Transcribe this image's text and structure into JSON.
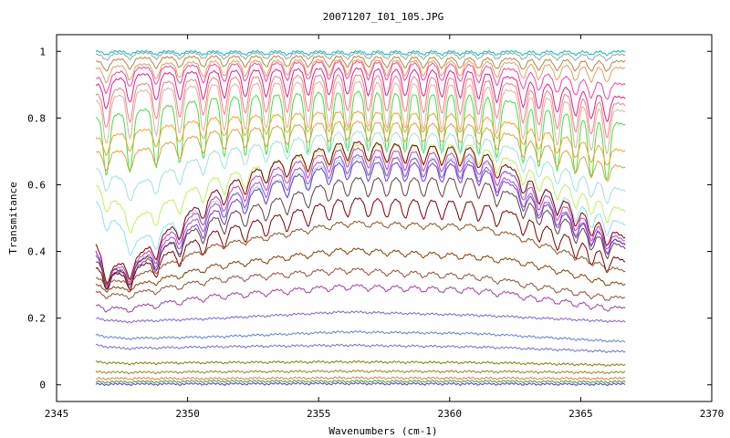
{
  "chart_data": {
    "type": "line",
    "title": "20071207_I01_105.JPG",
    "xlabel": "Wavenumbers (cm-1)",
    "ylabel": "Transmitance",
    "xlim": [
      2345,
      2370
    ],
    "ylim": [
      -0.05,
      1.05
    ],
    "xticks": [
      2345,
      2350,
      2355,
      2360,
      2365,
      2370
    ],
    "yticks": [
      0,
      0.2,
      0.4,
      0.6,
      0.8,
      1
    ],
    "ytick_labels": [
      "0",
      "0.2",
      "0.4",
      "0.6",
      "0.8",
      "1"
    ],
    "grid": false,
    "legend": "none",
    "x_range_data": [
      2346.5,
      2366.7
    ],
    "series_profiles": [
      {
        "color": "#00c0c0",
        "x": [
          2346.5,
          2348,
          2351,
          2356,
          2361,
          2366.7
        ],
        "y": [
          1.0,
          1.0,
          1.0,
          1.0,
          1.0,
          1.0
        ]
      },
      {
        "color": "#a0a0a0",
        "x": [
          2346.5,
          2348,
          2351,
          2356,
          2361,
          2366.7
        ],
        "y": [
          0.99,
          0.995,
          0.995,
          0.995,
          0.995,
          0.99
        ]
      },
      {
        "color": "#c08040",
        "x": [
          2346.5,
          2348,
          2351,
          2356,
          2361,
          2366.7
        ],
        "y": [
          0.97,
          0.98,
          0.985,
          0.985,
          0.98,
          0.97
        ]
      },
      {
        "color": "#e0a060",
        "x": [
          2346.5,
          2348,
          2351,
          2356,
          2361,
          2366.7
        ],
        "y": [
          0.95,
          0.96,
          0.97,
          0.975,
          0.97,
          0.95
        ]
      },
      {
        "color": "#ff40a0",
        "x": [
          2346.5,
          2348,
          2351,
          2356,
          2361,
          2366.7
        ],
        "y": [
          0.92,
          0.95,
          0.96,
          0.97,
          0.96,
          0.9
        ]
      },
      {
        "color": "#e02080",
        "x": [
          2346.5,
          2348,
          2351,
          2356,
          2361,
          2366.7
        ],
        "y": [
          0.9,
          0.93,
          0.94,
          0.95,
          0.94,
          0.86
        ]
      },
      {
        "color": "#f08080",
        "x": [
          2346.5,
          2348,
          2351,
          2356,
          2361,
          2366.7
        ],
        "y": [
          0.87,
          0.9,
          0.92,
          0.93,
          0.92,
          0.84
        ]
      },
      {
        "color": "#e0b0a0",
        "x": [
          2346.5,
          2348,
          2351,
          2356,
          2361,
          2366.7
        ],
        "y": [
          0.85,
          0.88,
          0.9,
          0.91,
          0.9,
          0.82
        ]
      },
      {
        "color": "#40e040",
        "x": [
          2346.5,
          2348,
          2351,
          2356,
          2361,
          2366.7
        ],
        "y": [
          0.8,
          0.82,
          0.86,
          0.88,
          0.87,
          0.78
        ]
      },
      {
        "color": "#ffa020",
        "x": [
          2346.5,
          2348,
          2351,
          2356,
          2361,
          2366.7
        ],
        "y": [
          0.74,
          0.76,
          0.8,
          0.82,
          0.81,
          0.7
        ]
      },
      {
        "color": "#e0a040",
        "x": [
          2346.5,
          2348,
          2351,
          2356,
          2361,
          2366.7
        ],
        "y": [
          0.7,
          0.7,
          0.76,
          0.79,
          0.78,
          0.65
        ]
      },
      {
        "color": "#a0e0e0",
        "x": [
          2346.5,
          2348,
          2351,
          2356,
          2361,
          2366.7
        ],
        "y": [
          0.65,
          0.6,
          0.7,
          0.76,
          0.75,
          0.58
        ]
      },
      {
        "color": "#c0f060",
        "x": [
          2346.5,
          2348,
          2351,
          2356,
          2361,
          2366.7
        ],
        "y": [
          0.6,
          0.5,
          0.62,
          0.72,
          0.72,
          0.52
        ]
      },
      {
        "color": "#90e0f0",
        "x": [
          2346.5,
          2348,
          2351,
          2356,
          2361,
          2366.7
        ],
        "y": [
          0.55,
          0.43,
          0.55,
          0.68,
          0.68,
          0.48
        ]
      },
      {
        "color": "#800000",
        "x": [
          2346.5,
          2347,
          2348,
          2351,
          2353,
          2356,
          2361,
          2363,
          2366.7
        ],
        "y": [
          0.42,
          0.35,
          0.38,
          0.58,
          0.66,
          0.73,
          0.71,
          0.62,
          0.44
        ]
      },
      {
        "color": "#c040c0",
        "x": [
          2346.5,
          2347,
          2348,
          2351,
          2353,
          2356,
          2361,
          2363,
          2366.7
        ],
        "y": [
          0.4,
          0.34,
          0.37,
          0.56,
          0.64,
          0.71,
          0.69,
          0.6,
          0.43
        ]
      },
      {
        "color": "#a050d0",
        "x": [
          2346.5,
          2347,
          2348,
          2351,
          2353,
          2356,
          2361,
          2363,
          2366.7
        ],
        "y": [
          0.4,
          0.33,
          0.36,
          0.54,
          0.62,
          0.69,
          0.67,
          0.58,
          0.42
        ]
      },
      {
        "color": "#7040c0",
        "x": [
          2346.5,
          2347,
          2348,
          2351,
          2353,
          2356,
          2361,
          2363,
          2366.7
        ],
        "y": [
          0.39,
          0.33,
          0.35,
          0.52,
          0.6,
          0.67,
          0.66,
          0.57,
          0.42
        ]
      },
      {
        "color": "#604040",
        "x": [
          2346.5,
          2347.5,
          2351,
          2356,
          2361,
          2363,
          2366.7
        ],
        "y": [
          0.37,
          0.34,
          0.5,
          0.62,
          0.62,
          0.55,
          0.41
        ]
      },
      {
        "color": "#800000",
        "x": [
          2346.5,
          2347.5,
          2351,
          2356,
          2361,
          2363,
          2366.7
        ],
        "y": [
          0.35,
          0.33,
          0.46,
          0.56,
          0.55,
          0.5,
          0.37
        ]
      },
      {
        "color": "#905020",
        "x": [
          2346.5,
          2347.5,
          2351,
          2356,
          2361,
          2363,
          2366.7
        ],
        "y": [
          0.32,
          0.31,
          0.42,
          0.49,
          0.48,
          0.44,
          0.34
        ]
      },
      {
        "color": "#804000",
        "x": [
          2346.5,
          2347.5,
          2351,
          2356,
          2361,
          2363,
          2366.7
        ],
        "y": [
          0.3,
          0.29,
          0.36,
          0.41,
          0.39,
          0.37,
          0.3
        ]
      },
      {
        "color": "#905040",
        "x": [
          2346.5,
          2347.5,
          2351,
          2356,
          2361,
          2366.7
        ],
        "y": [
          0.28,
          0.27,
          0.32,
          0.35,
          0.33,
          0.26
        ]
      },
      {
        "color": "#a040a0",
        "x": [
          2346.5,
          2347.5,
          2351,
          2356,
          2361,
          2366.7
        ],
        "y": [
          0.24,
          0.23,
          0.27,
          0.3,
          0.29,
          0.23
        ]
      },
      {
        "color": "#8060e0",
        "x": [
          2346.5,
          2347.5,
          2351,
          2356,
          2361,
          2366.7
        ],
        "y": [
          0.2,
          0.19,
          0.2,
          0.22,
          0.21,
          0.19
        ]
      },
      {
        "color": "#6080e0",
        "x": [
          2346.5,
          2347.5,
          2351,
          2356,
          2361,
          2366.7
        ],
        "y": [
          0.15,
          0.14,
          0.145,
          0.16,
          0.155,
          0.13
        ]
      },
      {
        "color": "#7070d0",
        "x": [
          2346.5,
          2347.5,
          2351,
          2356,
          2361,
          2366.7
        ],
        "y": [
          0.12,
          0.11,
          0.115,
          0.12,
          0.115,
          0.1
        ]
      },
      {
        "color": "#808000",
        "x": [
          2346.5,
          2347.5,
          2351,
          2356,
          2361,
          2366.7
        ],
        "y": [
          0.07,
          0.065,
          0.068,
          0.07,
          0.068,
          0.06
        ]
      },
      {
        "color": "#a08020",
        "x": [
          2346.5,
          2347.5,
          2351,
          2356,
          2361,
          2366.7
        ],
        "y": [
          0.04,
          0.038,
          0.04,
          0.042,
          0.041,
          0.038
        ]
      },
      {
        "color": "#e08040",
        "x": [
          2346.5,
          2347.5,
          2351,
          2356,
          2361,
          2366.7
        ],
        "y": [
          0.02,
          0.02,
          0.02,
          0.022,
          0.021,
          0.02
        ]
      },
      {
        "color": "#40a040",
        "x": [
          2346.5,
          2347.5,
          2351,
          2356,
          2361,
          2366.7
        ],
        "y": [
          0.01,
          0.01,
          0.012,
          0.012,
          0.012,
          0.01
        ]
      },
      {
        "color": "#4040c0",
        "x": [
          2346.5,
          2347.5,
          2351,
          2356,
          2361,
          2366.7
        ],
        "y": [
          0.003,
          0.003,
          0.004,
          0.005,
          0.004,
          0.003
        ]
      }
    ],
    "absorption_bands_cm1": [
      2346.9,
      2347.8,
      2348.8,
      2349.7,
      2350.6,
      2351.4,
      2352.2,
      2353.0,
      2353.8,
      2354.6,
      2355.4,
      2356.1,
      2356.9,
      2357.6,
      2358.3,
      2359.0,
      2359.7,
      2360.4,
      2361.1,
      2361.8,
      2362.8,
      2363.4,
      2364.1,
      2364.8,
      2365.4,
      2366.0
    ]
  }
}
